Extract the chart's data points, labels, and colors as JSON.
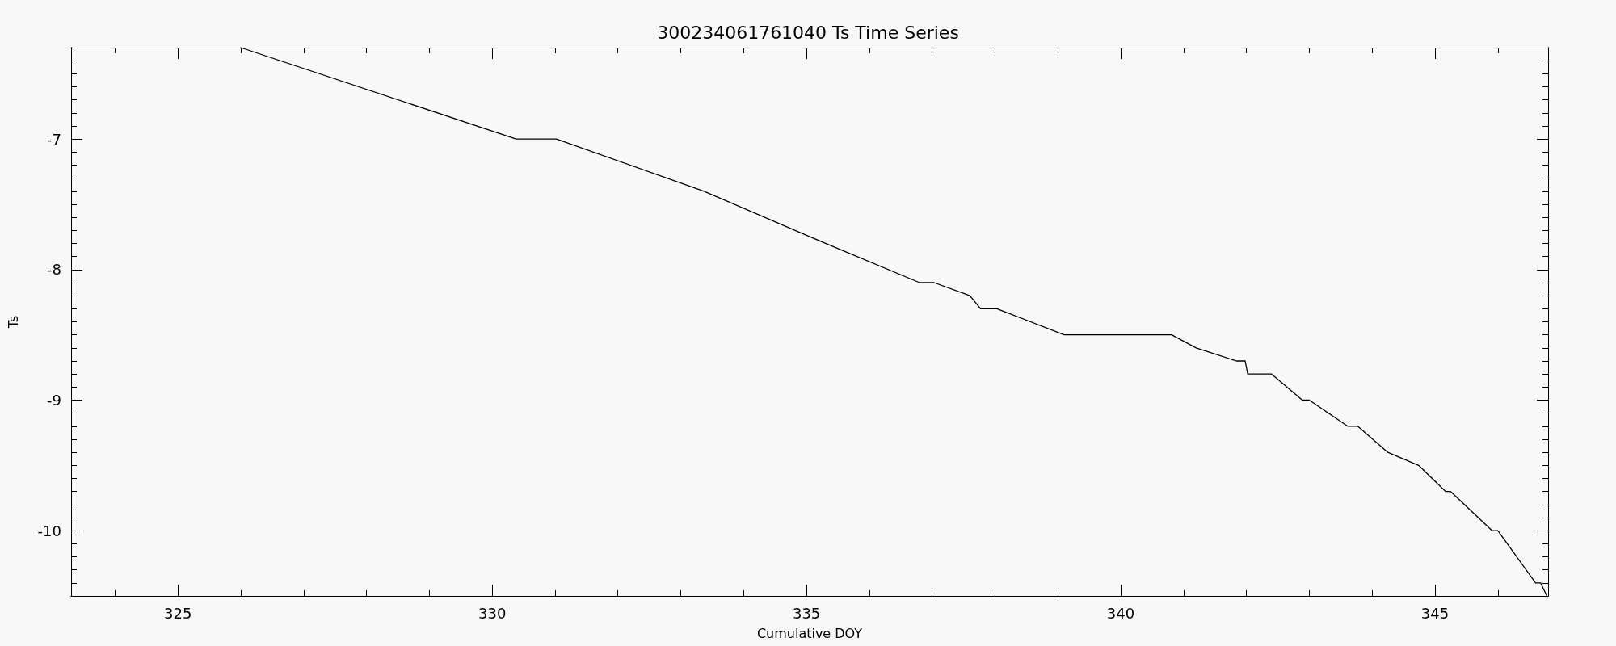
{
  "chart_data": {
    "type": "line",
    "title": "300234061761040 Ts Time Series",
    "xlabel": "Cumulative DOY",
    "ylabel": "Ts",
    "x": [
      326.0,
      330.38,
      331.02,
      333.37,
      335.06,
      336.8,
      337.03,
      337.6,
      337.77,
      338.03,
      339.1,
      340.81,
      341.2,
      341.84,
      341.98,
      342.02,
      342.4,
      342.89,
      343.0,
      343.61,
      343.77,
      344.25,
      344.74,
      345.17,
      345.25,
      345.91,
      346.0,
      346.6,
      346.68,
      346.78
    ],
    "series": [
      {
        "color": "#000000",
        "values": [
          -6.3,
          -7.0,
          -7.0,
          -7.4,
          -7.75,
          -8.1,
          -8.1,
          -8.2,
          -8.3,
          -8.3,
          -8.5,
          -8.5,
          -8.6,
          -8.7,
          -8.7,
          -8.8,
          -8.8,
          -9.0,
          -9.0,
          -9.2,
          -9.2,
          -9.4,
          -9.5,
          -9.7,
          -9.7,
          -10.0,
          -10.0,
          -10.4,
          -10.4,
          -10.5
        ]
      }
    ],
    "xlim": [
      323.3,
      346.8
    ],
    "xticks": [
      {
        "value": 324,
        "label": null
      },
      325,
      {
        "value": 326,
        "label": null
      },
      {
        "value": 327,
        "label": null
      },
      {
        "value": 328,
        "label": null
      },
      {
        "value": 329,
        "label": null
      },
      330,
      {
        "value": 331,
        "label": null
      },
      {
        "value": 332,
        "label": null
      },
      {
        "value": 333,
        "label": null
      },
      {
        "value": 334,
        "label": null
      },
      335,
      {
        "value": 336,
        "label": null
      },
      {
        "value": 337,
        "label": null
      },
      {
        "value": 338,
        "label": null
      },
      {
        "value": 339,
        "label": null
      },
      340,
      {
        "value": 341,
        "label": null
      },
      {
        "value": 342,
        "label": null
      },
      {
        "value": 343,
        "label": null
      },
      {
        "value": 344,
        "label": null
      },
      345,
      {
        "value": 346,
        "label": null
      }
    ],
    "ylim": [
      -10.5,
      -6.3
    ],
    "yticks": [
      {
        "value": -6.4,
        "label": null
      },
      {
        "value": -6.5,
        "label": null
      },
      {
        "value": -6.6,
        "label": null
      },
      {
        "value": -6.7,
        "label": null
      },
      {
        "value": -6.8,
        "label": null
      },
      {
        "value": -6.9,
        "label": null
      },
      -7,
      {
        "value": -7.1,
        "label": null
      },
      {
        "value": -7.2,
        "label": null
      },
      {
        "value": -7.3,
        "label": null
      },
      {
        "value": -7.4,
        "label": null
      },
      {
        "value": -7.5,
        "label": null
      },
      {
        "value": -7.6,
        "label": null
      },
      {
        "value": -7.7,
        "label": null
      },
      {
        "value": -7.8,
        "label": null
      },
      {
        "value": -7.9,
        "label": null
      },
      -8,
      {
        "value": -8.1,
        "label": null
      },
      {
        "value": -8.2,
        "label": null
      },
      {
        "value": -8.3,
        "label": null
      },
      {
        "value": -8.4,
        "label": null
      },
      {
        "value": -8.5,
        "label": null
      },
      {
        "value": -8.6,
        "label": null
      },
      {
        "value": -8.7,
        "label": null
      },
      {
        "value": -8.8,
        "label": null
      },
      {
        "value": -8.9,
        "label": null
      },
      -9,
      {
        "value": -9.1,
        "label": null
      },
      {
        "value": -9.2,
        "label": null
      },
      {
        "value": -9.3,
        "label": null
      },
      {
        "value": -9.4,
        "label": null
      },
      {
        "value": -9.5,
        "label": null
      },
      {
        "value": -9.6,
        "label": null
      },
      {
        "value": -9.7,
        "label": null
      },
      {
        "value": -9.8,
        "label": null
      },
      {
        "value": -9.9,
        "label": null
      },
      -10,
      {
        "value": -10.1,
        "label": null
      },
      {
        "value": -10.2,
        "label": null
      },
      {
        "value": -10.3,
        "label": null
      },
      {
        "value": -10.4,
        "label": null
      }
    ],
    "grid": false,
    "marker": "none",
    "line_style": "solid"
  }
}
